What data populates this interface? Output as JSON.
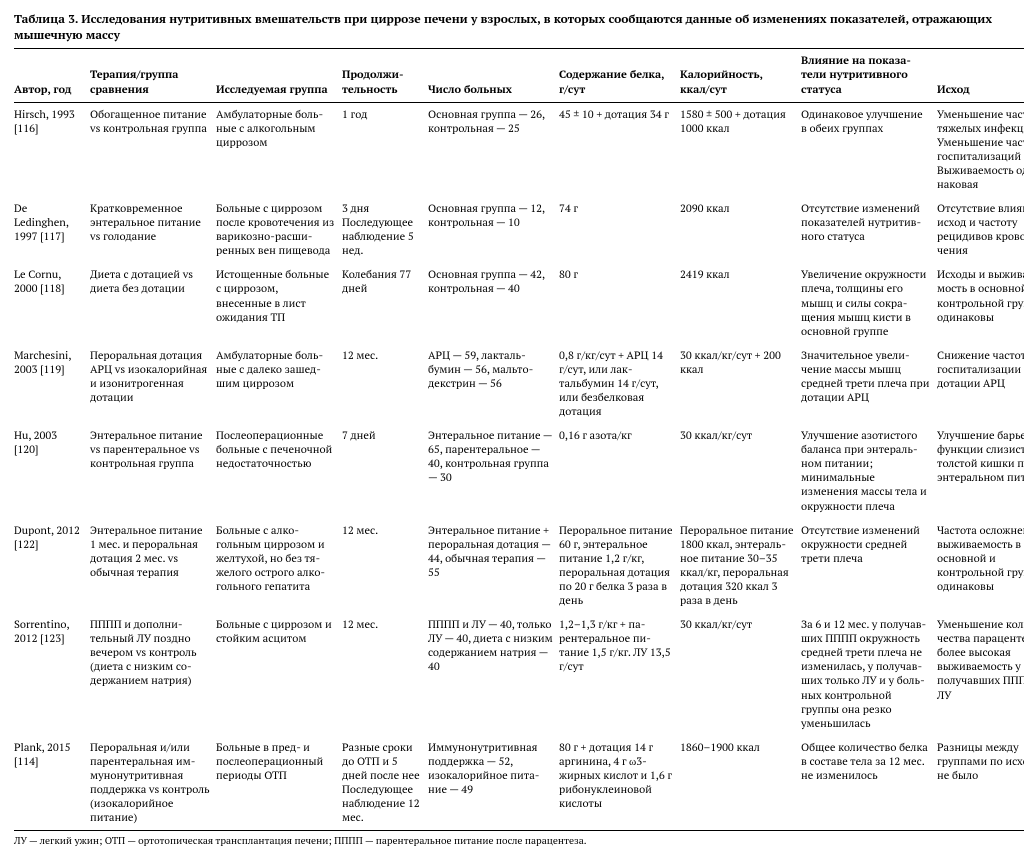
{
  "title": "Таблица 3. Исследования нутритивных вмешательств при циррозе печени у взрослых, в которых сообщаются данные об изменениях показателей, отражающих мышечную массу",
  "columns": [
    "Автор, год",
    "Терапия/группа сравнения",
    "Исследуемая группа",
    "Продолжи­тельность",
    "Число больных",
    "Содержание бел­ка, г/сут",
    "Калорийность, ккал/сут",
    "Влияние на показа­тели нутритивного статуса",
    "Исход"
  ],
  "rows": [
    {
      "c": [
        "Hirsch, 1993 [116]",
        "Обогащенное питание vs контрольная группа",
        "Амбулаторные боль­ные с алкогольным циррозом",
        "1 год",
        "Основная группа — 26, контрольная — 25",
        "45 ± 10 + дотация 34 г",
        "1580 ± 500 + дотация 1000 ккал",
        "Одинаковое улучшение в обеих группах",
        "Уменьшение частоты тяжелых инфекций Уменьшение часто­ты госпитализаций Выживаемость оди­наковая"
      ]
    },
    {
      "c": [
        "De Ledinghen, 1997 [117]",
        "Кратковременное энтеральное питание vs голодание",
        "Больные с циррозом после кровотечения из варикозно-расши­ренных вен пищевода",
        "3 дня Последующее наблюдение 5 нед.",
        "Основная группа — 12, контрольная — 10",
        "74 г",
        "2090 ккал",
        "Отсутствие изменений показателей нутритив­ного статуса",
        "Отсутствие влияния на исход и частоту рецидивов кровоте­чения"
      ]
    },
    {
      "c": [
        "Le Cornu, 2000 [118]",
        "Диета с дотацией vs диета без дотации",
        "Истощенные боль­ные с циррозом, внесенные в лист ожидания ТП",
        "Колебания 77 дней",
        "Основная группа — 42, контрольная — 40",
        "80 г",
        "2419 ккал",
        "Увеличение окружности плеча, толщины его мышц и силы сокра­щения мышц кисти в основной группе",
        "Исходы и выживае­мость в основной и контрольной груп­пах одинаковы"
      ]
    },
    {
      "c": [
        "Marchesini, 2003 [119]",
        "Пероральная дотация АРЦ vs изокалорийная и изонитрогенная дотации",
        "Амбулаторные боль­ные с далеко зашед­шим циррозом",
        "12 мес.",
        "АРЦ — 59, лакталь­бумин — 56, мальто­декстрин — 56",
        "0,8 г/кг/сут + АРЦ 14 г/сут, или лак­тальбумин 14 г/сут, или безбелковая дотация",
        "30 ккал/кг/сут + 200 ккал",
        "Значительное увели­чение массы мышц сред­ней трети плеча при дотации АРЦ",
        "Снижение частоты госпитализации при дотации АРЦ"
      ]
    },
    {
      "c": [
        "Hu, 2003 [120]",
        "Энтеральное питание vs парентеральное vs контрольная группа",
        "Послеоперационные больные с печеноч­ной недостаточно­стью",
        "7 дней",
        "Энтеральное пита­ние — 65, парен­теральное — 40, контрольная группа — 30",
        "0,16 г азота/кг",
        "30 ккал/кг/сут",
        "Улучшение азотистого баланса при энтераль­ном питании; минималь­ные изменения массы тела и окружности плеча",
        "Улучшение барьер­ной функции слизи­стой толстой кишки при энтеральном питании"
      ]
    },
    {
      "c": [
        "Dupont, 2012 [122]",
        "Энтеральное питание 1 мес. и пероральная дотация 2 мес. vs обычная терапия",
        "Больные с алко­гольным циррозом и желтухой, но без тя­желого острого алко­гольного гепатита",
        "12 мес.",
        "Энтеральное пита­ние + пероральная дотация — 44, обыч­ная терапия — 55",
        "Пероральное пита­ние 60 г, энтераль­ное питание 1,2 г/кг, пероральная до­тация по 20 г белка 3 раза в день",
        "Пероральное питание 1800 ккал, энтераль­ное питание 30–35 ккал/кг, перораль­ная дотация 320 ккал 3 раза в день",
        "Отсутствие изменений окружности средней трети плеча",
        "Частота осложне­ний и выживае­мость в основной и контрольной груп­пах одинаковы"
      ]
    },
    {
      "c": [
        "Sorrentino, 2012 [123]",
        "ПППП и дополни­тельный ЛУ поздно вечером vs контроль (диета с низким со­держанием натрия)",
        "Больные с циррозом и стойким асцитом",
        "12 мес.",
        "ПППП и ЛУ — 40, только ЛУ — 40, дие­та с низким содержа­нием натрия — 40",
        "1,2–1,3 г/кг + па­рентеральное пи­тание 1,5 г/кг. ЛУ 13,5 г/сут",
        "30 ккал/кг/сут",
        "За 6 и 12 мес. у получав­ших ПППП окружность средней трети плеча не изменилась, у получав­ших только ЛУ и у боль­ных контрольной группы она резко уменьшилась",
        "Уменьшение коли­чества парацентe­зов и более высокая выживаемость у получавших ПППП + ЛУ"
      ]
    },
    {
      "c": [
        "Plank, 2015 [114]",
        "Пероральная и/или парентеральная им­мунонутритивная поддержка vs кон­троль (изокалорийное питание)",
        "Больные в пред- и послеоперационный периоды ОТП",
        "Разные сроки до ОТП и 5 дней после нее Последующее наблюдение 12 мес.",
        "Иммунонутритивная поддержка — 52, изокалорийное пита­ние — 49",
        "80 г + дотация 14 г аргинина, 4 г ω3-жирных кислот и 1,6 г рибонуклеи­новой кислоты",
        "1860–1900 ккал",
        "Общее количество белка в составе тела за 12 мес. не изменилось",
        "Разницы между группами по исхо­дам не было"
      ]
    }
  ],
  "footnote": "ЛУ — легкий ужин; ОТП — ортотопическая трансплантация печени; ПППП — парентеральное питание после парацентеза."
}
